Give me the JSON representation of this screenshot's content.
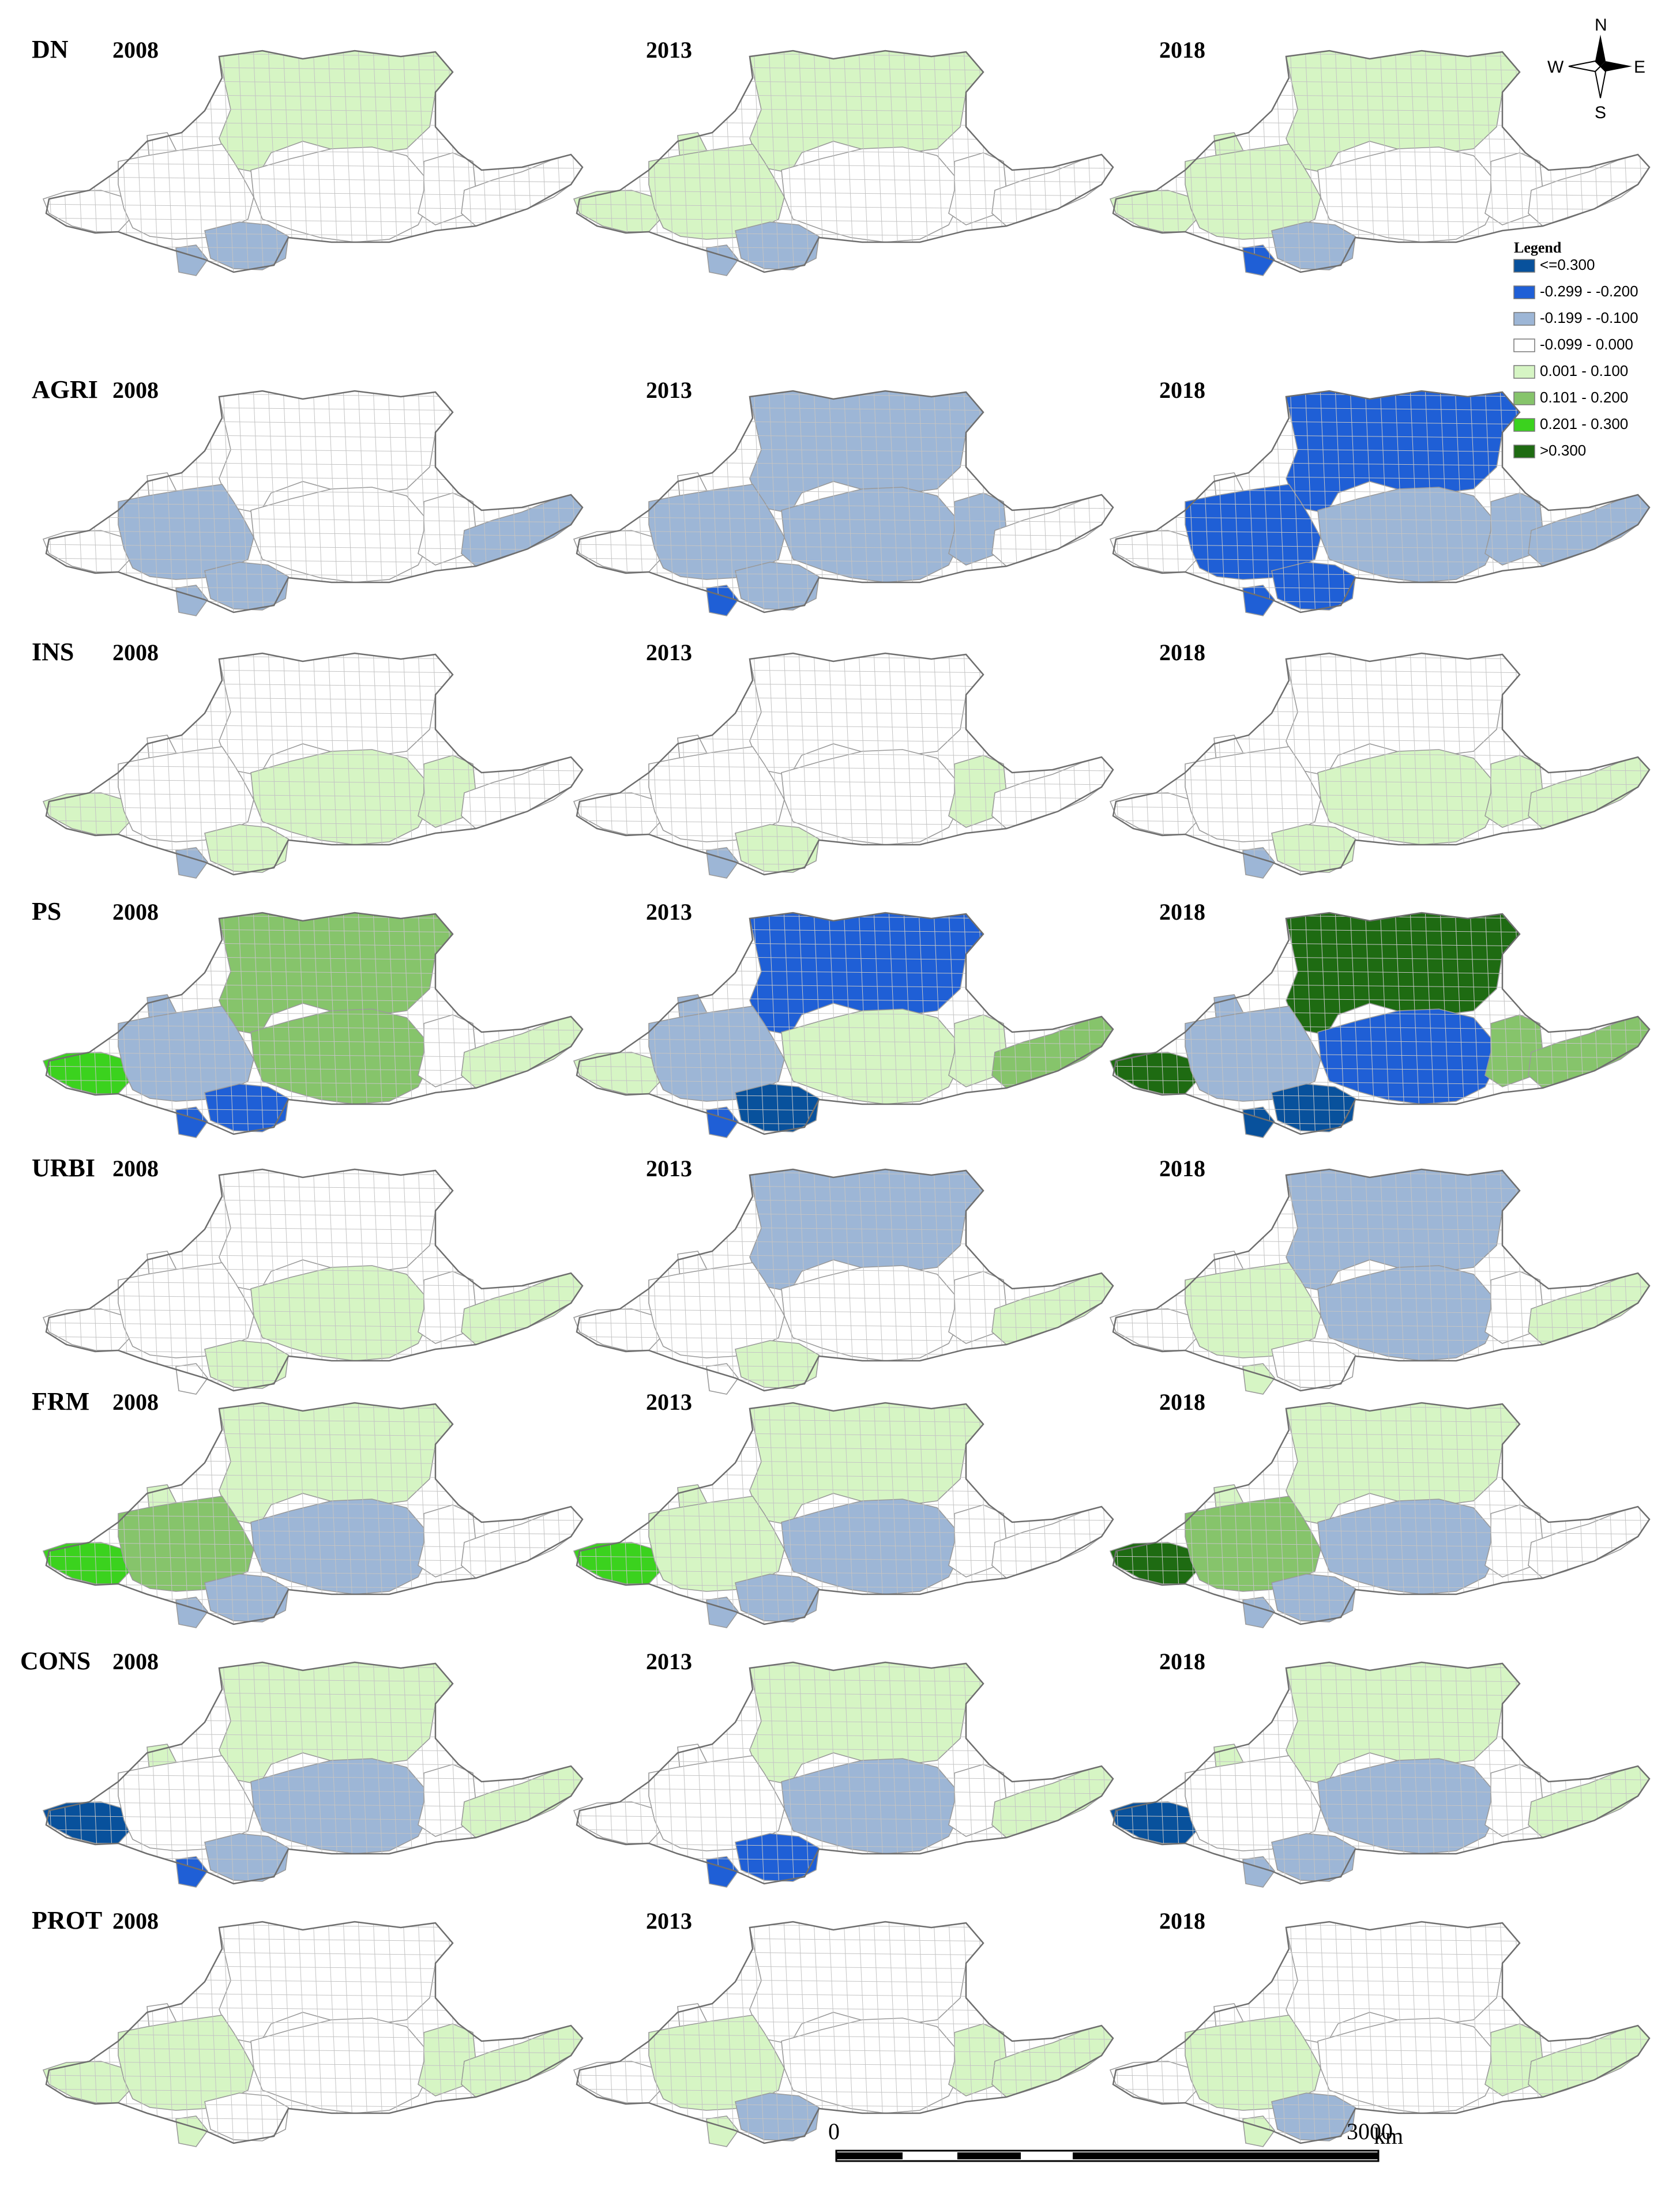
{
  "class_colors": {
    "c1": "#08519c",
    "c2": "#1f5fd6",
    "c3": "#9db6d6",
    "c4": "#ffffff",
    "c5": "#d6f5c4",
    "c6": "#86c46b",
    "c7": "#3bd21e",
    "c8": "#1e6b12"
  },
  "legend": {
    "title": "Legend",
    "items": [
      {
        "label": "<=0.300",
        "cls": "c1"
      },
      {
        "label": "-0.299 - -0.200",
        "cls": "c2"
      },
      {
        "label": "-0.199 - -0.100",
        "cls": "c3"
      },
      {
        "label": "-0.099 - 0.000",
        "cls": "c4"
      },
      {
        "label": "0.001 - 0.100",
        "cls": "c5"
      },
      {
        "label": "0.101 - 0.200",
        "cls": "c6"
      },
      {
        "label": "0.201 - 0.300",
        "cls": "c7"
      },
      {
        "label": ">0.300",
        "cls": "c8"
      }
    ]
  },
  "compass": {
    "n": "N",
    "s": "S",
    "e": "E",
    "w": "W",
    "icon": "north-arrow-icon"
  },
  "scale_bar": {
    "start": "0",
    "end": "3000",
    "unit": "km"
  },
  "rows": [
    {
      "label": "DN",
      "years": [
        "2008",
        "2013",
        "2018"
      ],
      "maps": [
        {
          "n": "c5",
          "wf": "c4",
          "w": "c4",
          "c": "c4",
          "s": "c3",
          "e": "c4",
          "f": "c4",
          "sw": "c3",
          "nw": "c4"
        },
        {
          "n": "c5",
          "wf": "c5",
          "w": "c5",
          "c": "c4",
          "s": "c3",
          "e": "c4",
          "f": "c4",
          "sw": "c3",
          "nw": "c5"
        },
        {
          "n": "c5",
          "wf": "c5",
          "w": "c5",
          "c": "c4",
          "s": "c3",
          "e": "c4",
          "f": "c4",
          "sw": "c2",
          "nw": "c5"
        }
      ]
    },
    {
      "label": "AGRI",
      "years": [
        "2008",
        "2013",
        "2018"
      ],
      "maps": [
        {
          "n": "c4",
          "wf": "c4",
          "w": "c3",
          "c": "c4",
          "s": "c3",
          "e": "c4",
          "f": "c3",
          "sw": "c3",
          "nw": "c4"
        },
        {
          "n": "c3",
          "wf": "c4",
          "w": "c3",
          "c": "c3",
          "s": "c3",
          "e": "c3",
          "f": "c4",
          "sw": "c2",
          "nw": "c4"
        },
        {
          "n": "c2",
          "wf": "c4",
          "w": "c2",
          "c": "c3",
          "s": "c2",
          "e": "c3",
          "f": "c3",
          "sw": "c2",
          "nw": "c4"
        }
      ]
    },
    {
      "label": "INS",
      "years": [
        "2008",
        "2013",
        "2018"
      ],
      "maps": [
        {
          "n": "c4",
          "wf": "c5",
          "w": "c4",
          "c": "c5",
          "s": "c5",
          "e": "c5",
          "f": "c4",
          "sw": "c3",
          "nw": "c4"
        },
        {
          "n": "c4",
          "wf": "c4",
          "w": "c4",
          "c": "c4",
          "s": "c5",
          "e": "c5",
          "f": "c4",
          "sw": "c3",
          "nw": "c4"
        },
        {
          "n": "c4",
          "wf": "c4",
          "w": "c4",
          "c": "c5",
          "s": "c5",
          "e": "c5",
          "f": "c5",
          "sw": "c3",
          "nw": "c4"
        }
      ]
    },
    {
      "label": "PS",
      "years": [
        "2008",
        "2013",
        "2018"
      ],
      "maps": [
        {
          "n": "c6",
          "wf": "c7",
          "w": "c3",
          "c": "c6",
          "s": "c2",
          "e": "c4",
          "f": "c5",
          "sw": "c2",
          "nw": "c3"
        },
        {
          "n": "c2",
          "wf": "c5",
          "w": "c3",
          "c": "c5",
          "s": "c1",
          "e": "c5",
          "f": "c6",
          "sw": "c2",
          "nw": "c3"
        },
        {
          "n": "c8",
          "wf": "c8",
          "w": "c3",
          "c": "c2",
          "s": "c1",
          "e": "c6",
          "f": "c6",
          "sw": "c1",
          "nw": "c3"
        }
      ]
    },
    {
      "label": "URBI",
      "years": [
        "2008",
        "2013",
        "2018"
      ],
      "maps": [
        {
          "n": "c4",
          "wf": "c4",
          "w": "c4",
          "c": "c5",
          "s": "c5",
          "e": "c4",
          "f": "c5",
          "sw": "c4",
          "nw": "c4"
        },
        {
          "n": "c3",
          "wf": "c4",
          "w": "c4",
          "c": "c4",
          "s": "c5",
          "e": "c4",
          "f": "c5",
          "sw": "c4",
          "nw": "c4"
        },
        {
          "n": "c3",
          "wf": "c4",
          "w": "c5",
          "c": "c3",
          "s": "c4",
          "e": "c4",
          "f": "c5",
          "sw": "c5",
          "nw": "c4"
        }
      ]
    },
    {
      "label": "FRM",
      "years": [
        "2008",
        "2013",
        "2018"
      ],
      "maps": [
        {
          "n": "c5",
          "wf": "c7",
          "w": "c6",
          "c": "c3",
          "s": "c3",
          "e": "c4",
          "f": "c4",
          "sw": "c3",
          "nw": "c5"
        },
        {
          "n": "c5",
          "wf": "c7",
          "w": "c5",
          "c": "c3",
          "s": "c3",
          "e": "c4",
          "f": "c4",
          "sw": "c3",
          "nw": "c5"
        },
        {
          "n": "c5",
          "wf": "c8",
          "w": "c6",
          "c": "c3",
          "s": "c3",
          "e": "c4",
          "f": "c4",
          "sw": "c3",
          "nw": "c5"
        }
      ]
    },
    {
      "label": "CONS",
      "years": [
        "2008",
        "2013",
        "2018"
      ],
      "maps": [
        {
          "n": "c5",
          "wf": "c1",
          "w": "c4",
          "c": "c3",
          "s": "c3",
          "e": "c4",
          "f": "c5",
          "sw": "c2",
          "nw": "c5"
        },
        {
          "n": "c5",
          "wf": "c4",
          "w": "c4",
          "c": "c3",
          "s": "c2",
          "e": "c4",
          "f": "c5",
          "sw": "c2",
          "nw": "c4"
        },
        {
          "n": "c5",
          "wf": "c1",
          "w": "c4",
          "c": "c3",
          "s": "c3",
          "e": "c4",
          "f": "c5",
          "sw": "c3",
          "nw": "c5"
        }
      ]
    },
    {
      "label": "PROT",
      "years": [
        "2008",
        "2013",
        "2018"
      ],
      "maps": [
        {
          "n": "c4",
          "wf": "c5",
          "w": "c5",
          "c": "c4",
          "s": "c4",
          "e": "c5",
          "f": "c5",
          "sw": "c5",
          "nw": "c4"
        },
        {
          "n": "c4",
          "wf": "c4",
          "w": "c5",
          "c": "c4",
          "s": "c3",
          "e": "c5",
          "f": "c5",
          "sw": "c5",
          "nw": "c4"
        },
        {
          "n": "c4",
          "wf": "c4",
          "w": "c5",
          "c": "c4",
          "s": "c3",
          "e": "c5",
          "f": "c5",
          "sw": "c5",
          "nw": "c4"
        }
      ]
    }
  ]
}
